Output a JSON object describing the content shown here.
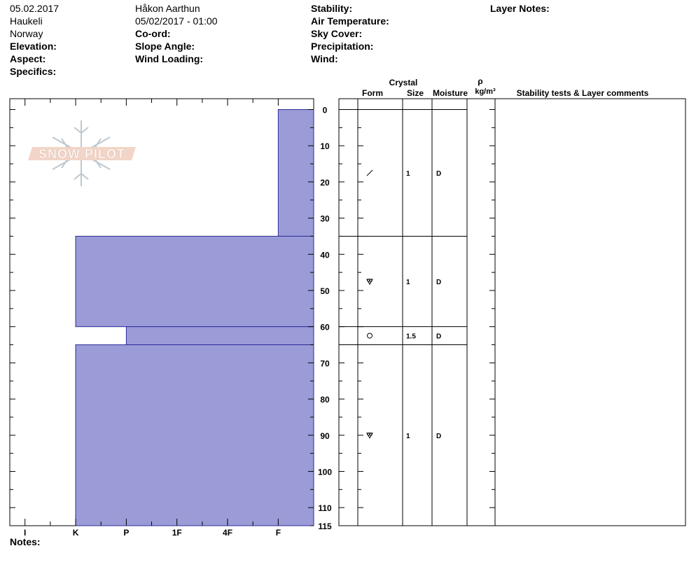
{
  "header": {
    "date": "05.02.2017",
    "location": "Haukeli",
    "country": "Norway",
    "elevation_label": "Elevation:",
    "aspect_label": "Aspect:",
    "specifics_label": "Specifics:",
    "observer": "Håkon Aarthun",
    "datetime": "05/02/2017 - 01:00",
    "coord_label": "Co-ord:",
    "slope_label": "Slope Angle:",
    "wind_loading_label": "Wind Loading:",
    "stability_label": "Stability:",
    "air_temp_label": "Air Temperature:",
    "sky_label": "Sky Cover:",
    "precip_label": "Precipitation:",
    "wind_label": "Wind:",
    "layer_notes_label": "Layer Notes:"
  },
  "logo": {
    "text": "SNOW PILOT"
  },
  "notes_label": "Notes:",
  "columns": {
    "crystal": "Crystal",
    "form": "Form",
    "size": "Size",
    "moisture": "Moisture",
    "rho": "ρ",
    "density_unit": "kg/m³",
    "comments": "Stability tests & Layer comments"
  },
  "chart_data": {
    "type": "bar",
    "orientation": "horizontal",
    "depth_ticks": [
      0,
      10,
      20,
      30,
      40,
      50,
      60,
      70,
      80,
      90,
      100,
      110,
      115
    ],
    "depth_range": [
      -3,
      115
    ],
    "hardness_ticks": [
      "I",
      "K",
      "P",
      "1F",
      "4F",
      "F"
    ],
    "hardness_scale": {
      "I": 1,
      "K": 2,
      "P": 3,
      "1F": 4,
      "4F": 5,
      "F": 6
    },
    "hardness_range": [
      0.7,
      6.7
    ],
    "layers": [
      {
        "top": 0,
        "bottom": 35,
        "hardness": "F",
        "hardness_value": 6,
        "form": "decomposing",
        "size": "1",
        "moisture": "D"
      },
      {
        "top": 35,
        "bottom": 60,
        "hardness": "K",
        "hardness_value": 2,
        "form": "faceted",
        "size": "1",
        "moisture": "D"
      },
      {
        "top": 60,
        "bottom": 65,
        "hardness": "P",
        "hardness_value": 3,
        "form": "rounded",
        "size": "1.5",
        "moisture": "D"
      },
      {
        "top": 65,
        "bottom": 115,
        "hardness": "K",
        "hardness_value": 2,
        "form": "faceted",
        "size": "1",
        "moisture": "D"
      }
    ],
    "colors": {
      "fill": "#9b9bd7",
      "stroke": "#2d2d9a"
    }
  }
}
